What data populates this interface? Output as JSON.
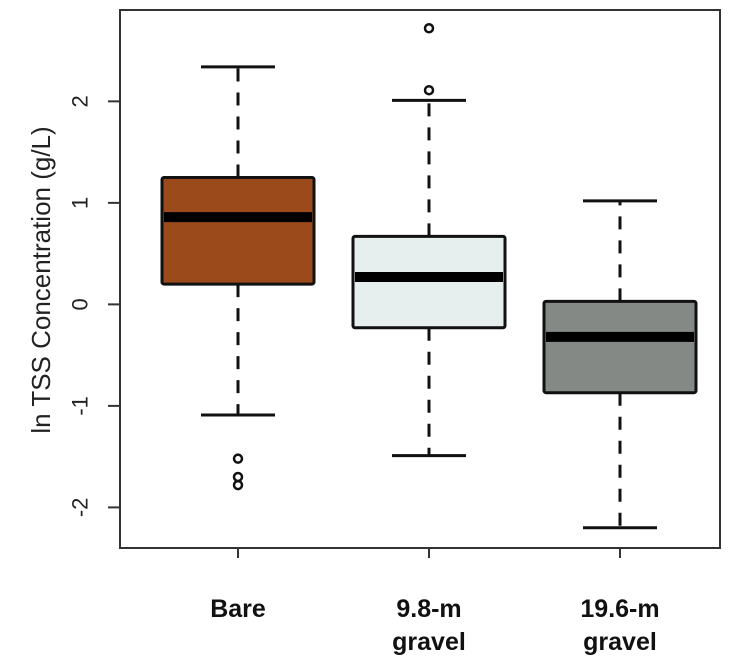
{
  "chart_data": {
    "type": "boxplot",
    "ylabel": "ln TSS Concentration (g/L)",
    "xlabel": "",
    "ylim": [
      -2.4,
      2.9
    ],
    "yticks": [
      -2,
      -1,
      0,
      1,
      2
    ],
    "ytick_labels": [
      "-2",
      "-1",
      "0",
      "1",
      "2"
    ],
    "grid": false,
    "categories": [
      {
        "lines": [
          "Bare"
        ]
      },
      {
        "lines": [
          "9.8-m",
          "gravel"
        ]
      },
      {
        "lines": [
          "19.6-m",
          "gravel"
        ]
      }
    ],
    "boxes": [
      {
        "whisker_low": -1.09,
        "q1": 0.2,
        "median": 0.86,
        "q3": 1.25,
        "whisker_high": 2.34,
        "outliers": [
          -1.52,
          -1.7,
          -1.78
        ],
        "color": "#9B4A1C"
      },
      {
        "whisker_low": -1.49,
        "q1": -0.23,
        "median": 0.27,
        "q3": 0.67,
        "whisker_high": 2.01,
        "outliers": [
          2.11,
          2.72
        ],
        "color": "#E6EFEE"
      },
      {
        "whisker_low": -2.2,
        "q1": -0.87,
        "median": -0.32,
        "q3": 0.03,
        "whisker_high": 1.02,
        "outliers": [],
        "color": "#848986"
      }
    ]
  }
}
